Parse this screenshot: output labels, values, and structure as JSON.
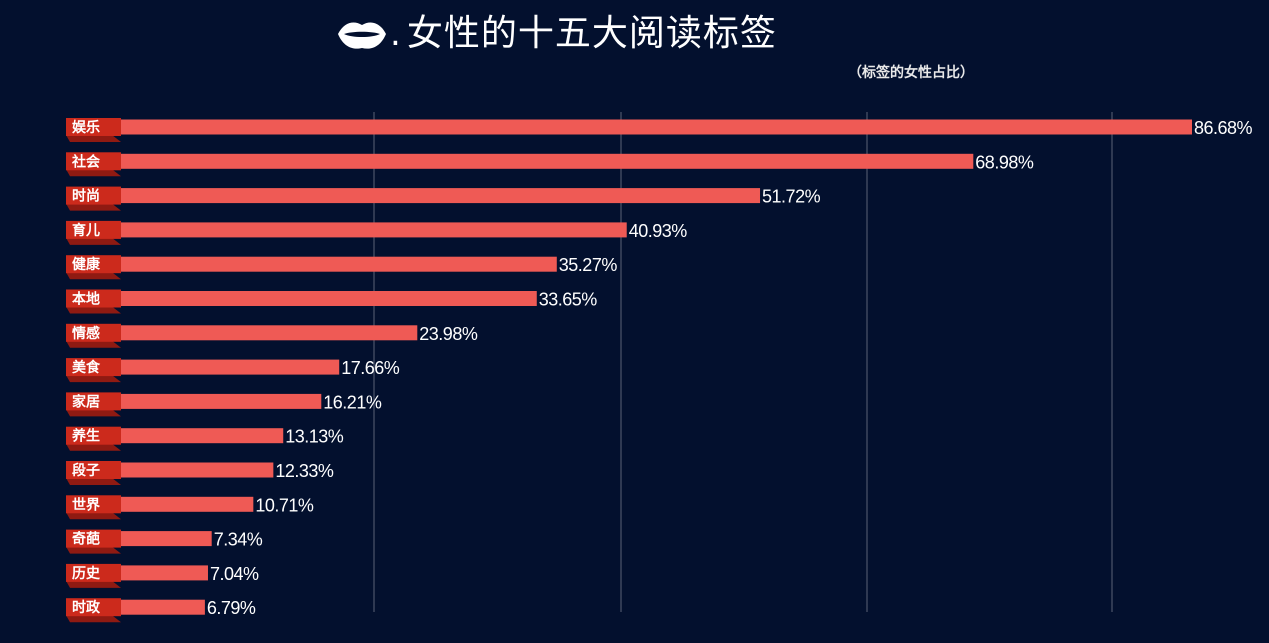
{
  "title": "女性的十五大阅读标签",
  "title_icon": "lips-icon",
  "subtitle": "（标签的女性占比）",
  "colors": {
    "background": "#03102e",
    "bar": "#ef5a55",
    "label_tag": "#cc2a1c",
    "label_tag_shadow": "#8f1a12",
    "grid": "#5b6275",
    "text": "#ffffff"
  },
  "chart_data": {
    "type": "bar",
    "orientation": "horizontal",
    "title": "女性的十五大阅读标签",
    "subtitle": "（标签的女性占比）",
    "categories": [
      "娱乐",
      "社会",
      "时尚",
      "育儿",
      "健康",
      "本地",
      "情感",
      "美食",
      "家居",
      "养生",
      "段子",
      "世界",
      "奇葩",
      "历史",
      "时政"
    ],
    "values": [
      86.68,
      68.98,
      51.72,
      40.93,
      35.27,
      33.65,
      23.98,
      17.66,
      16.21,
      13.13,
      12.33,
      10.71,
      7.34,
      7.04,
      6.79
    ],
    "value_labels": [
      "86.68%",
      "68.98%",
      "51.72%",
      "40.93%",
      "35.27%",
      "33.65%",
      "23.98%",
      "17.66%",
      "16.21%",
      "13.13%",
      "12.33%",
      "10.71%",
      "7.34%",
      "7.04%",
      "6.79%"
    ],
    "unit": "%",
    "xlim": [
      0,
      86.68
    ],
    "grid": true,
    "legend": "none"
  }
}
